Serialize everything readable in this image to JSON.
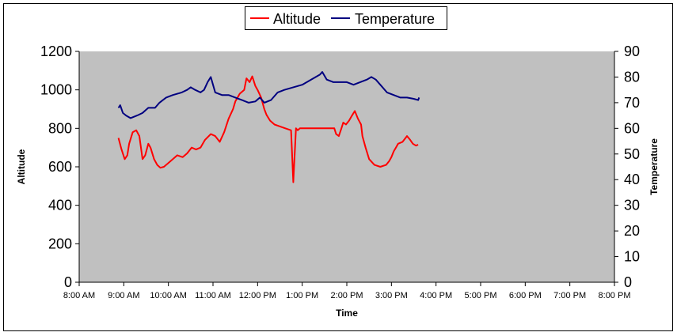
{
  "chart_data": {
    "type": "line",
    "title": "",
    "xlabel": "Time",
    "ylabel": "Altitude",
    "y2label": "Temperature",
    "x_ticks": [
      "8:00 AM",
      "9:00 AM",
      "10:00 AM",
      "11:00 AM",
      "12:00 PM",
      "1:00 PM",
      "2:00 PM",
      "3:00 PM",
      "4:00 PM",
      "5:00 PM",
      "6:00 PM",
      "7:00 PM",
      "8:00 PM"
    ],
    "x_range_hours": [
      8,
      20
    ],
    "ylim": [
      0,
      1200
    ],
    "y_ticks": [
      0,
      200,
      400,
      600,
      800,
      1000,
      1200
    ],
    "y2lim": [
      0,
      90
    ],
    "y2_ticks": [
      0,
      10,
      20,
      30,
      40,
      50,
      60,
      70,
      80,
      90
    ],
    "grid": false,
    "legend_position": "top-center",
    "plot_background": "#c0c0c0",
    "series": [
      {
        "name": "Altitude",
        "axis": "left",
        "color": "#ff0000",
        "x": [
          8.88,
          8.95,
          9.02,
          9.08,
          9.12,
          9.2,
          9.28,
          9.35,
          9.42,
          9.48,
          9.55,
          9.6,
          9.68,
          9.75,
          9.82,
          9.9,
          10.0,
          10.1,
          10.2,
          10.32,
          10.42,
          10.52,
          10.62,
          10.72,
          10.82,
          10.95,
          11.05,
          11.15,
          11.25,
          11.35,
          11.45,
          11.5,
          11.6,
          11.7,
          11.75,
          11.82,
          11.88,
          11.95,
          12.0,
          12.08,
          12.15,
          12.2,
          12.28,
          12.38,
          12.5,
          12.62,
          12.75,
          12.8,
          12.86,
          12.9,
          12.95,
          13.1,
          13.3,
          13.5,
          13.72,
          13.76,
          13.82,
          13.88,
          13.92,
          13.98,
          14.05,
          14.1,
          14.18,
          14.25,
          14.32,
          14.35,
          14.42,
          14.5,
          14.62,
          14.75,
          14.88,
          14.95,
          15.0,
          15.05,
          15.1,
          15.15,
          15.25,
          15.35,
          15.42,
          15.48,
          15.55,
          15.6
        ],
        "values": [
          750,
          690,
          640,
          660,
          720,
          780,
          790,
          760,
          640,
          660,
          720,
          700,
          640,
          610,
          595,
          600,
          620,
          640,
          660,
          650,
          670,
          700,
          690,
          700,
          740,
          770,
          760,
          730,
          780,
          850,
          900,
          940,
          980,
          1000,
          1060,
          1040,
          1070,
          1020,
          1000,
          960,
          900,
          870,
          840,
          820,
          810,
          800,
          790,
          520,
          800,
          790,
          800,
          800,
          800,
          800,
          800,
          770,
          760,
          800,
          830,
          820,
          840,
          860,
          890,
          850,
          820,
          760,
          700,
          640,
          610,
          600,
          610,
          630,
          650,
          680,
          700,
          720,
          730,
          760,
          740,
          720,
          710,
          715
        ]
      },
      {
        "name": "Temperature",
        "axis": "right",
        "color": "#000080",
        "x": [
          8.88,
          8.92,
          8.98,
          9.05,
          9.15,
          9.3,
          9.42,
          9.55,
          9.7,
          9.8,
          9.95,
          10.1,
          10.3,
          10.42,
          10.5,
          10.6,
          10.72,
          10.8,
          10.88,
          10.95,
          11.05,
          11.2,
          11.35,
          11.5,
          11.65,
          11.8,
          11.95,
          12.05,
          12.15,
          12.3,
          12.45,
          12.6,
          12.8,
          13.0,
          13.2,
          13.4,
          13.45,
          13.55,
          13.7,
          13.85,
          14.0,
          14.15,
          14.3,
          14.45,
          14.55,
          14.65,
          14.75,
          14.9,
          15.05,
          15.2,
          15.35,
          15.5,
          15.6,
          15.62
        ],
        "values": [
          68,
          69,
          66,
          65,
          64,
          65,
          66,
          68,
          68,
          70,
          72,
          73,
          74,
          75,
          76,
          75,
          74,
          75,
          78,
          80,
          74,
          73,
          73,
          72,
          71,
          70,
          70.5,
          72,
          70,
          71,
          74,
          75,
          76,
          77,
          79,
          81,
          82,
          79,
          78,
          78,
          78,
          77,
          78,
          79,
          80,
          79,
          77,
          74,
          73,
          72,
          72,
          71.5,
          71,
          72
        ]
      }
    ]
  }
}
